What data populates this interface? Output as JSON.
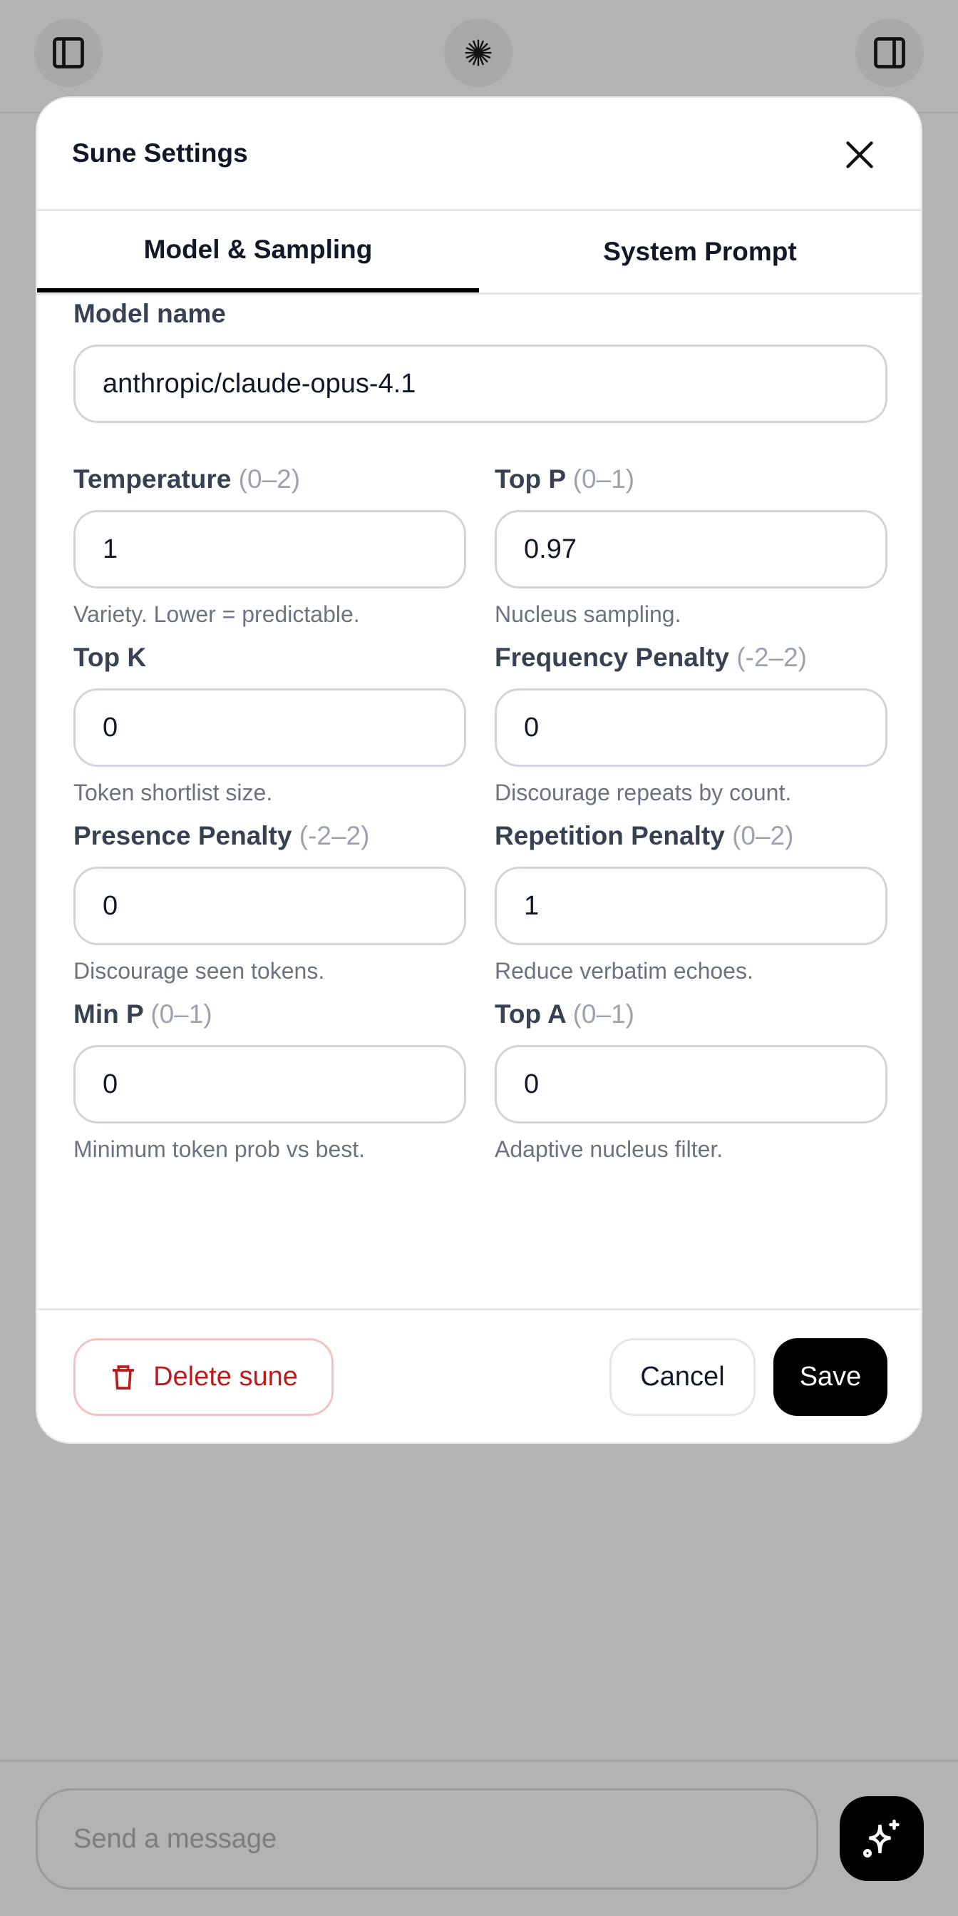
{
  "topbar": {
    "left_icon": "sidebar-left-icon",
    "center_icon": "starburst-logo-icon",
    "right_icon": "sidebar-right-icon"
  },
  "modal": {
    "title": "Sune Settings",
    "tabs": [
      {
        "label": "Model & Sampling",
        "active": true
      },
      {
        "label": "System Prompt",
        "active": false
      }
    ],
    "model_name": {
      "label": "Model name",
      "value": "anthropic/claude-opus-4.1"
    },
    "fields": [
      {
        "label": "Temperature",
        "range": "(0–2)",
        "value": "1",
        "hint": "Variety. Lower = predictable."
      },
      {
        "label": "Top P",
        "range": "(0–1)",
        "value": "0.97",
        "hint": "Nucleus sampling."
      },
      {
        "label": "Top K",
        "range": "",
        "value": "0",
        "hint": "Token shortlist size."
      },
      {
        "label": "Frequency Penalty",
        "range": "(-2–2)",
        "value": "0",
        "hint": "Discourage repeats by count."
      },
      {
        "label": "Presence Penalty",
        "range": "(-2–2)",
        "value": "0",
        "hint": "Discourage seen tokens."
      },
      {
        "label": "Repetition Penalty",
        "range": "(0–2)",
        "value": "1",
        "hint": "Reduce verbatim echoes."
      },
      {
        "label": "Min P",
        "range": "(0–1)",
        "value": "0",
        "hint": "Minimum token prob vs best."
      },
      {
        "label": "Top A",
        "range": "(0–1)",
        "value": "0",
        "hint": "Adaptive nucleus filter."
      }
    ],
    "footer": {
      "delete_label": "Delete sune",
      "cancel_label": "Cancel",
      "save_label": "Save"
    },
    "colors": {
      "danger": "#b91c1c",
      "primary": "#000000"
    }
  },
  "composer": {
    "placeholder": "Send a message",
    "send_icon": "sparkles-icon"
  }
}
